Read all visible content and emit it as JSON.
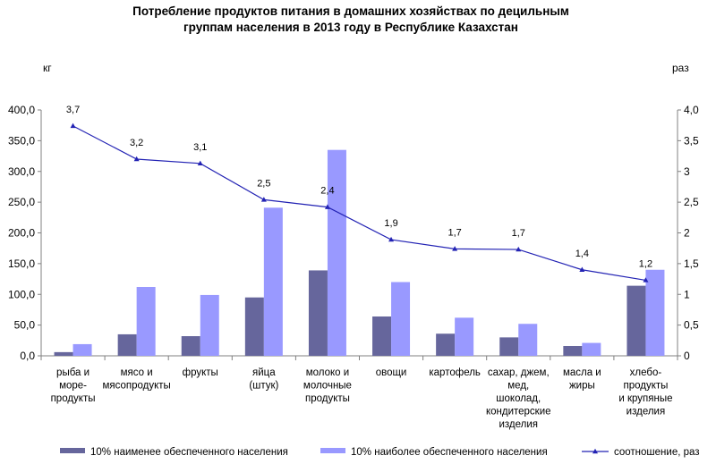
{
  "chart_data": {
    "type": "bar",
    "title": [
      "Потребление продуктов питания в домашних хозяйствах по децильным",
      "группам населения в 2013 году в Республике Казахстан"
    ],
    "ylabel": "кг",
    "y2label": "раз",
    "ylim": [
      0,
      400
    ],
    "y2lim": [
      0,
      4
    ],
    "yticks": [
      "0,0",
      "50,0",
      "100,0",
      "150,0",
      "200,0",
      "250,0",
      "300,0",
      "350,0",
      "400,0"
    ],
    "y2ticks": [
      "0",
      "0,5",
      "1",
      "1,5",
      "2",
      "2,5",
      "3",
      "3,5",
      "4,0"
    ],
    "categories": [
      [
        "рыба и",
        "море-",
        "продукты"
      ],
      [
        "мясо и",
        "мясопродукты"
      ],
      [
        "фрукты"
      ],
      [
        "яйца",
        "(штук)"
      ],
      [
        "молоко и",
        "молочные",
        "продукты"
      ],
      [
        "овощи"
      ],
      [
        "картофель"
      ],
      [
        "сахар, джем,",
        "мед,",
        "шоколад,",
        "кондитерские",
        "изделия"
      ],
      [
        "масла и",
        "жиры"
      ],
      [
        "хлебо-",
        "продукты",
        "и крупяные",
        "изделия"
      ]
    ],
    "series": [
      {
        "name": "10% наименее обеспеченного населения",
        "kind": "bar",
        "color": "#66669c",
        "values": [
          6,
          35,
          32,
          95,
          139,
          64,
          36,
          30,
          16,
          114
        ]
      },
      {
        "name": "10% наиболее обеспеченного населения",
        "kind": "bar",
        "color": "#9999ff",
        "values": [
          19,
          112,
          99,
          241,
          335,
          120,
          62,
          52,
          21,
          140
        ]
      },
      {
        "name": "соотношение, раз",
        "kind": "line",
        "axis": "right",
        "color": "#2323b4",
        "values": [
          3.74,
          3.2,
          3.13,
          2.54,
          2.42,
          1.89,
          1.74,
          1.73,
          1.4,
          1.23
        ],
        "labels": [
          "3,7",
          "3,2",
          "3,1",
          "2,5",
          "2,4",
          "1,9",
          "1,7",
          "1,7",
          "1,4",
          "1,2"
        ]
      }
    ],
    "legend": "bottom"
  }
}
